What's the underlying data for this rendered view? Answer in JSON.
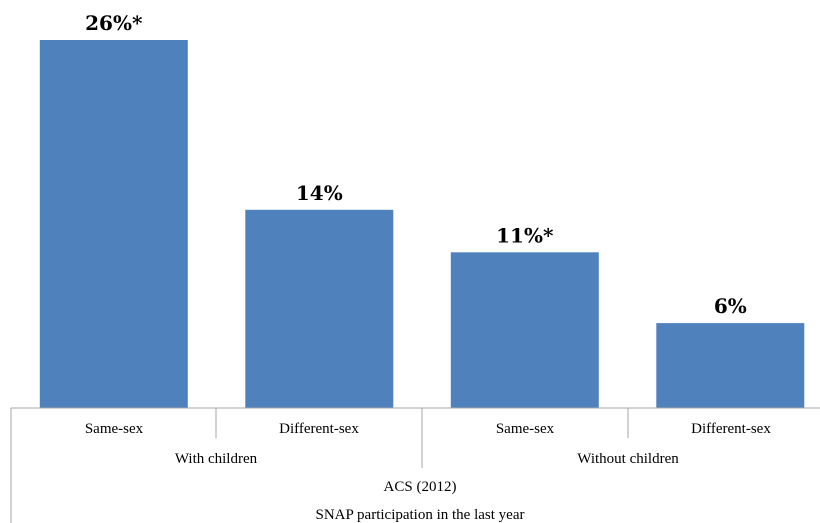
{
  "chart_data": {
    "type": "bar",
    "title": "",
    "xlabel": "",
    "ylabel": "",
    "ylim": [
      0,
      27
    ],
    "grid": false,
    "categories": [
      "Same-sex",
      "Different-sex",
      "Same-sex",
      "Different-sex"
    ],
    "values": [
      26,
      14,
      11,
      6
    ],
    "data_labels": [
      "26%*",
      "14%",
      "11%*",
      "6%"
    ],
    "groups": [
      {
        "label": "With children",
        "categories": [
          "Same-sex",
          "Different-sex"
        ]
      },
      {
        "label": "Without children",
        "categories": [
          "Same-sex",
          "Different-sex"
        ]
      }
    ],
    "source_label": "ACS (2012)",
    "measure_label": "SNAP participation in the last year",
    "bar_color": "#4f81bd",
    "axis_color": "#a6a6a6"
  }
}
